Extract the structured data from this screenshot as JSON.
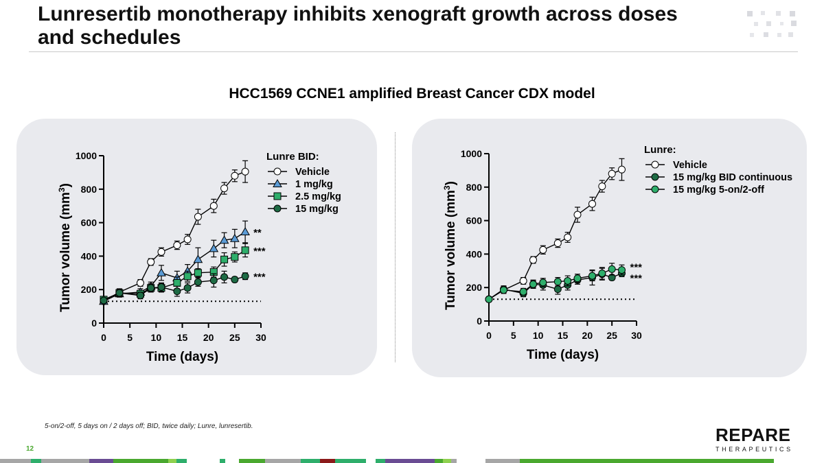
{
  "slide": {
    "title": "Lunresertib monotherapy inhibits xenograft growth across doses and schedules",
    "subtitle": "HCC1569 CCNE1 amplified Breast Cancer CDX model",
    "footnote": "5-on/2-off, 5 days on / 2 days off; BID, twice daily; Lunre, lunresertib.",
    "page_number": "12",
    "logo": {
      "main": "REPARE",
      "sub": "THERAPEUTICS"
    },
    "colors": {
      "brand_green": "#4aa82f",
      "panel_bg": "#e9eaee",
      "blue": "#5b9bd5",
      "green": "#2eae6b",
      "dark_green": "#1e6b45",
      "purple": "#6a4c93",
      "dark_red": "#8b1a1a",
      "gray": "#a6a6a6"
    }
  },
  "chart_data": [
    {
      "type": "line",
      "xlabel": "Time (days)",
      "ylabel": "Tumor volume (mm",
      "ylabel_sup": "3",
      "ylabel_close": ")",
      "xlim": [
        0,
        30
      ],
      "ylim": [
        0,
        1000
      ],
      "xticks": [
        "0",
        "5",
        "10",
        "15",
        "20",
        "25",
        "30"
      ],
      "yticks": [
        "0",
        "200",
        "400",
        "600",
        "800",
        "1000"
      ],
      "baseline": 130,
      "legend_title": "Lunre BID:",
      "series": [
        {
          "name": "Vehicle",
          "marker": "circle",
          "fill": "#ffffff",
          "x": [
            0,
            3,
            7,
            9,
            11,
            14,
            16,
            18,
            21,
            23,
            25,
            27
          ],
          "y": [
            130,
            185,
            240,
            365,
            425,
            465,
            500,
            635,
            700,
            805,
            880,
            905
          ],
          "err": [
            15,
            20,
            20,
            20,
            25,
            25,
            30,
            45,
            40,
            35,
            35,
            65
          ]
        },
        {
          "name": "1 mg/kg",
          "marker": "triangle",
          "fill": "#5b9bd5",
          "x": [
            0,
            3,
            7,
            9,
            11,
            14,
            16,
            18,
            21,
            23,
            25,
            27
          ],
          "y": [
            130,
            175,
            185,
            220,
            300,
            270,
            310,
            380,
            445,
            495,
            505,
            545
          ],
          "err": [
            15,
            20,
            20,
            25,
            45,
            40,
            40,
            70,
            50,
            45,
            55,
            65
          ]
        },
        {
          "name": "2.5 mg/kg",
          "marker": "square",
          "fill": "#2eae6b",
          "x": [
            0,
            3,
            7,
            9,
            11,
            14,
            16,
            18,
            21,
            23,
            25,
            27
          ],
          "y": [
            140,
            180,
            175,
            210,
            210,
            240,
            280,
            300,
            305,
            380,
            395,
            435
          ],
          "err": [
            15,
            20,
            20,
            20,
            25,
            35,
            30,
            25,
            30,
            40,
            30,
            40
          ]
        },
        {
          "name": "15 mg/kg",
          "marker": "circle",
          "fill": "#1e6b45",
          "x": [
            0,
            3,
            7,
            9,
            11,
            14,
            16,
            18,
            21,
            23,
            25,
            27
          ],
          "y": [
            135,
            180,
            165,
            210,
            215,
            190,
            210,
            245,
            255,
            275,
            260,
            280
          ],
          "err": [
            15,
            20,
            20,
            25,
            25,
            30,
            30,
            25,
            40,
            35,
            15,
            20
          ]
        }
      ],
      "annotations": [
        {
          "series": "1 mg/kg",
          "text": "**"
        },
        {
          "series": "2.5 mg/kg",
          "text": "***"
        },
        {
          "series": "15 mg/kg",
          "text": "***"
        }
      ]
    },
    {
      "type": "line",
      "xlabel": "Time (days)",
      "ylabel": "Tumor volume (mm",
      "ylabel_sup": "3",
      "ylabel_close": ")",
      "xlim": [
        0,
        30
      ],
      "ylim": [
        0,
        1000
      ],
      "xticks": [
        "0",
        "5",
        "10",
        "15",
        "20",
        "25",
        "30"
      ],
      "yticks": [
        "0",
        "200",
        "400",
        "600",
        "800",
        "1000"
      ],
      "baseline": 130,
      "legend_title": "Lunre:",
      "series": [
        {
          "name": "Vehicle",
          "marker": "circle",
          "fill": "#ffffff",
          "x": [
            0,
            3,
            7,
            9,
            11,
            14,
            16,
            18,
            21,
            23,
            25,
            27
          ],
          "y": [
            130,
            185,
            240,
            365,
            425,
            465,
            500,
            635,
            700,
            805,
            880,
            905
          ],
          "err": [
            15,
            20,
            20,
            20,
            25,
            25,
            30,
            45,
            40,
            35,
            35,
            65
          ]
        },
        {
          "name": "15 mg/kg BID continuous",
          "marker": "circle",
          "fill": "#1e6b45",
          "x": [
            0,
            3,
            7,
            9,
            11,
            14,
            16,
            18,
            21,
            23,
            25,
            27
          ],
          "y": [
            130,
            190,
            165,
            220,
            215,
            190,
            215,
            245,
            260,
            280,
            260,
            285
          ],
          "err": [
            15,
            20,
            20,
            25,
            30,
            30,
            30,
            25,
            45,
            35,
            15,
            20
          ]
        },
        {
          "name": "15 mg/kg 5-on/2-off",
          "marker": "circle",
          "fill": "#2eae6b",
          "x": [
            0,
            3,
            7,
            9,
            11,
            14,
            16,
            18,
            21,
            23,
            25,
            27
          ],
          "y": [
            130,
            185,
            175,
            220,
            230,
            235,
            240,
            255,
            270,
            285,
            310,
            305
          ],
          "err": [
            15,
            20,
            20,
            20,
            25,
            25,
            30,
            25,
            30,
            35,
            35,
            30
          ]
        }
      ],
      "annotations": [
        {
          "series": "15 mg/kg 5-on/2-off",
          "text": "***"
        },
        {
          "series": "15 mg/kg BID continuous",
          "text": "***"
        }
      ]
    }
  ]
}
